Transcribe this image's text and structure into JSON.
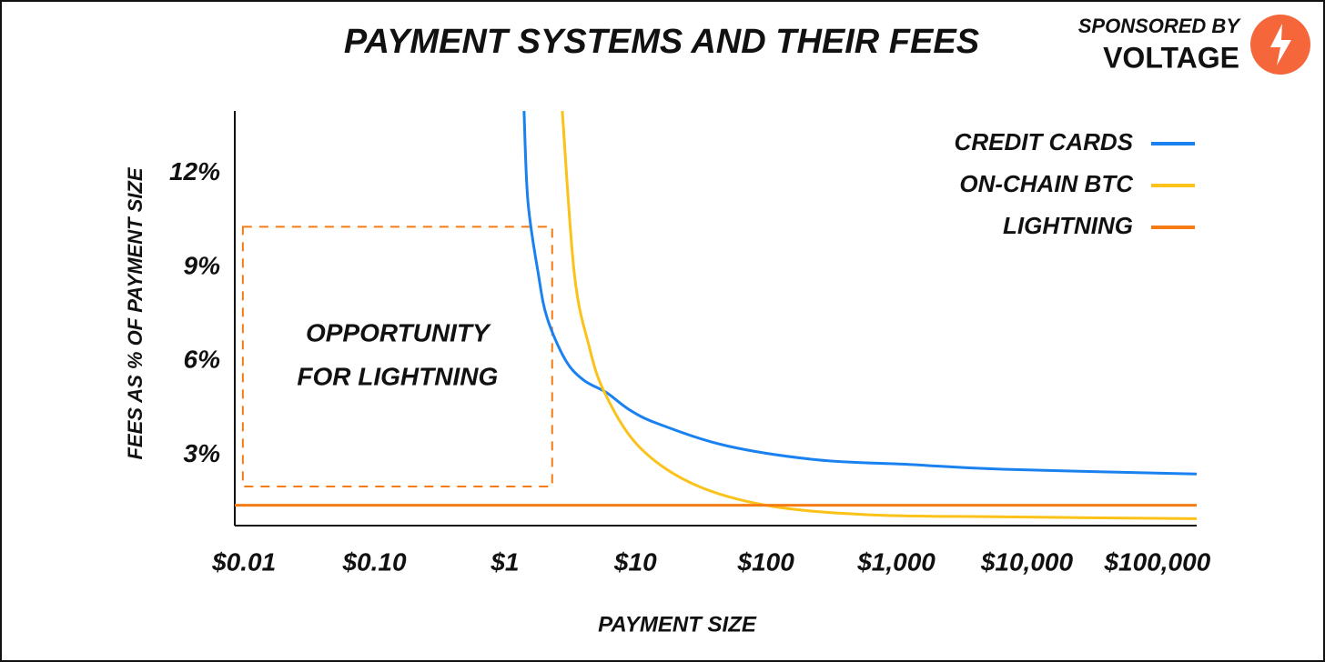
{
  "chart_data": {
    "type": "line",
    "title": "PAYMENT SYSTEMS AND THEIR FEES",
    "sponsor_label": "SPONSORED BY",
    "sponsor_name": "VOLTAGE",
    "xlabel": "PAYMENT SIZE",
    "ylabel": "FEES AS % OF PAYMENT SIZE",
    "xscale": "log",
    "xlim": [
      0.0085,
      200000
    ],
    "ylim": [
      0.75,
      14
    ],
    "xticks": [
      {
        "value": 0.01,
        "label": "$0.01"
      },
      {
        "value": 0.1,
        "label": "$0.10"
      },
      {
        "value": 1,
        "label": "$1"
      },
      {
        "value": 10,
        "label": "$10"
      },
      {
        "value": 100,
        "label": "$100"
      },
      {
        "value": 1000,
        "label": "$1,000"
      },
      {
        "value": 10000,
        "label": "$10,000"
      },
      {
        "value": 100000,
        "label": "$100,000"
      }
    ],
    "yticks": [
      {
        "value": 3,
        "label": "3%"
      },
      {
        "value": 6,
        "label": "6%"
      },
      {
        "value": 9,
        "label": "9%"
      },
      {
        "value": 12,
        "label": "12%"
      }
    ],
    "grid": false,
    "legend": "top-right",
    "series": [
      {
        "name": "CREDIT CARDS",
        "color": "#1a82f0",
        "x": [
          1.4,
          1.5,
          1.8,
          2.1,
          2.9,
          4,
          6,
          9,
          15,
          50,
          250,
          1300,
          6500,
          200000
        ],
        "values": [
          14,
          11.1,
          8.8,
          7.4,
          6.05,
          5.4,
          5.0,
          4.45,
          4.0,
          3.3,
          2.85,
          2.7,
          2.55,
          2.4
        ]
      },
      {
        "name": "ON-CHAIN BTC",
        "color": "#fbc21a",
        "x": [
          2.75,
          3.4,
          4.4,
          5.8,
          10.5,
          27,
          100,
          590,
          6600,
          200000
        ],
        "values": [
          14,
          8.8,
          6.5,
          5.0,
          3.3,
          2.1,
          1.4,
          1.1,
          1.03,
          0.97
        ]
      },
      {
        "name": "LIGHTNING",
        "color": "#f57c14",
        "x": [
          0.0085,
          200000
        ],
        "values": [
          1.4,
          1.4
        ]
      }
    ],
    "annotation": [
      "OPPORTUNITY",
      "FOR LIGHTNING"
    ],
    "annotation_box": {
      "x": [
        0.0098,
        2.3
      ],
      "y": [
        2.0,
        10.3
      ]
    }
  }
}
